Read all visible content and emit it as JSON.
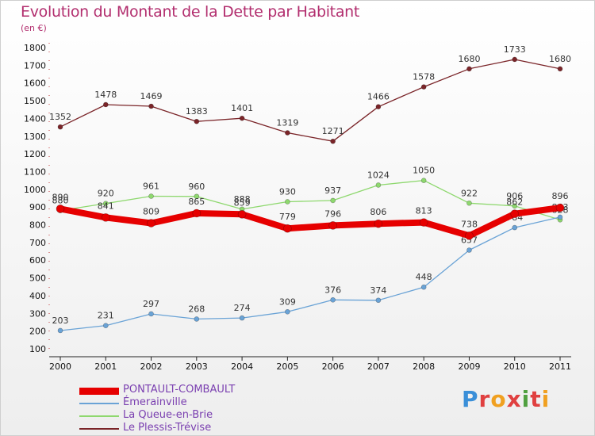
{
  "chart_data": {
    "type": "line",
    "title": "Evolution du Montant de la Dette par Habitant",
    "subtitle": "(en €)",
    "x": [
      "2000",
      "2001",
      "2002",
      "2003",
      "2004",
      "2005",
      "2006",
      "2007",
      "2008",
      "2009",
      "2010",
      "2011"
    ],
    "ylim": [
      100,
      1800
    ],
    "yticks": [
      100,
      200,
      300,
      400,
      500,
      600,
      700,
      800,
      900,
      1000,
      1100,
      1200,
      1300,
      1400,
      1500,
      1600,
      1700,
      1800
    ],
    "grid": false,
    "legend_position": "bottom-left",
    "series": [
      {
        "name": "Le Plessis-Trévise",
        "color": "#7a2428",
        "width": 1.3,
        "values": [
          1352,
          1478,
          1469,
          1383,
          1401,
          1319,
          1271,
          1466,
          1578,
          1680,
          1733,
          1680
        ],
        "labels": [
          "1352",
          "1478",
          "1469",
          "1383",
          "1401",
          "1319",
          "1271",
          "1466",
          "1578",
          "1680",
          "1733",
          "1680"
        ]
      },
      {
        "name": "La Queue-en-Brie",
        "color": "#8ed86e",
        "width": 1.3,
        "values": [
          880,
          920,
          961,
          960,
          888,
          930,
          937,
          1024,
          1050,
          922,
          906,
          828
        ],
        "labels": [
          "880",
          "920",
          "961",
          "960",
          "888",
          "930",
          "937",
          "1024",
          "1050",
          "922",
          "906",
          "828"
        ]
      },
      {
        "name": "Émerainville",
        "color": "#6aa3d6",
        "width": 1.3,
        "values": [
          203,
          231,
          297,
          268,
          274,
          309,
          376,
          374,
          448,
          657,
          784,
          843
        ],
        "labels": [
          "203",
          "231",
          "297",
          "268",
          "274",
          "309",
          "376",
          "374",
          "448",
          "657",
          "784",
          "843"
        ]
      },
      {
        "name": "PONTAULT-COMBAULT",
        "color": "#e60000",
        "width": 8,
        "values": [
          890,
          841,
          809,
          865,
          859,
          779,
          796,
          806,
          813,
          738,
          862,
          896
        ],
        "labels": [
          "890",
          "841",
          "809",
          "865",
          "859",
          "779",
          "796",
          "806",
          "813",
          "738",
          "862",
          "896"
        ]
      }
    ]
  },
  "legend": [
    {
      "label": "PONTAULT-COMBAULT",
      "color": "#e60000",
      "thick": true
    },
    {
      "label": "Émerainville",
      "color": "#6aa3d6",
      "thick": false
    },
    {
      "label": "La Queue-en-Brie",
      "color": "#8ed86e",
      "thick": false
    },
    {
      "label": "Le Plessis-Trévise",
      "color": "#7a2428",
      "thick": false
    }
  ],
  "logo": {
    "letters": [
      "P",
      "r",
      "o",
      "x",
      "i",
      "t",
      "i"
    ],
    "colors": [
      "#3a8fd8",
      "#e04040",
      "#f0a020",
      "#e04040",
      "#50a040",
      "#e04040",
      "#f0a020"
    ]
  }
}
